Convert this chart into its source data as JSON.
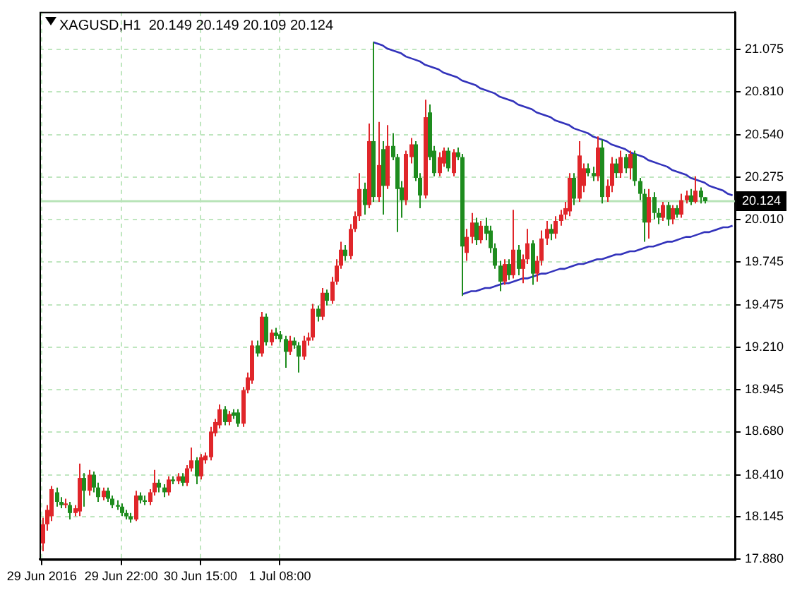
{
  "chart_data": {
    "type": "candlestick",
    "title": "XAGUSD,H1  20.149 20.149 20.109 20.124",
    "categories": [
      "29 Jun 2016",
      null,
      null,
      null,
      null,
      null,
      null,
      null,
      null,
      null,
      null,
      null,
      null,
      null,
      null,
      null,
      null,
      "29 Jun 22:00",
      null,
      null,
      null,
      null,
      null,
      null,
      null,
      null,
      null,
      null,
      null,
      null,
      null,
      null,
      null,
      null,
      "30 Jun 15:00",
      null,
      null,
      null,
      null,
      null,
      null,
      null,
      null,
      null,
      null,
      null,
      null,
      null,
      null,
      null,
      null,
      "1 Jul 08:00",
      null,
      null,
      null,
      null,
      null,
      null,
      null,
      null,
      null,
      null,
      null,
      null,
      null,
      null,
      null,
      null,
      null,
      null,
      null,
      null,
      null,
      null,
      null,
      null,
      null,
      null,
      null,
      null,
      null,
      null,
      null,
      null,
      null,
      null,
      null,
      null,
      null,
      null,
      null,
      null,
      null,
      null,
      null,
      null,
      null,
      null,
      null,
      null,
      null,
      null,
      null,
      null,
      null,
      null,
      null,
      null,
      null,
      null,
      null,
      null,
      null,
      null,
      null,
      null,
      null,
      null,
      null,
      null,
      null,
      null,
      null,
      null,
      null,
      null,
      null,
      null,
      null,
      null,
      null,
      null,
      null,
      null,
      null,
      null,
      null,
      null,
      null,
      null,
      null,
      null,
      null,
      null,
      null,
      null,
      null,
      null,
      null
    ],
    "ohlc": [
      [
        17.98,
        18.14,
        17.93,
        18.1
      ],
      [
        18.1,
        18.22,
        18.06,
        18.19
      ],
      [
        18.15,
        18.34,
        18.12,
        18.32
      ],
      [
        18.3,
        18.33,
        18.21,
        18.24
      ],
      [
        18.24,
        18.27,
        18.2,
        18.22
      ],
      [
        18.22,
        18.26,
        18.2,
        18.23
      ],
      [
        18.22,
        18.24,
        18.13,
        18.17
      ],
      [
        18.17,
        18.22,
        18.15,
        18.2
      ],
      [
        18.18,
        18.48,
        18.15,
        18.39
      ],
      [
        18.39,
        18.42,
        18.21,
        18.31
      ],
      [
        18.31,
        18.44,
        18.28,
        18.41
      ],
      [
        18.41,
        18.43,
        18.3,
        18.33
      ],
      [
        18.33,
        18.36,
        18.24,
        18.27
      ],
      [
        18.27,
        18.33,
        18.25,
        18.31
      ],
      [
        18.31,
        18.33,
        18.24,
        18.26
      ],
      [
        18.26,
        18.28,
        18.2,
        18.22
      ],
      [
        18.22,
        18.25,
        18.19,
        18.21
      ],
      [
        18.21,
        18.23,
        18.15,
        18.17
      ],
      [
        18.17,
        18.19,
        18.13,
        18.15
      ],
      [
        18.15,
        18.17,
        18.11,
        18.13
      ],
      [
        18.13,
        18.31,
        18.12,
        18.28
      ],
      [
        18.28,
        18.3,
        18.23,
        18.25
      ],
      [
        18.25,
        18.28,
        18.22,
        18.24
      ],
      [
        18.24,
        18.32,
        18.22,
        18.3
      ],
      [
        18.3,
        18.44,
        18.28,
        18.36
      ],
      [
        18.36,
        18.38,
        18.3,
        18.33
      ],
      [
        18.33,
        18.35,
        18.27,
        18.3
      ],
      [
        18.3,
        18.4,
        18.28,
        18.38
      ],
      [
        18.38,
        18.4,
        18.35,
        18.37
      ],
      [
        18.37,
        18.42,
        18.35,
        18.4
      ],
      [
        18.4,
        18.42,
        18.34,
        18.36
      ],
      [
        18.36,
        18.47,
        18.34,
        18.45
      ],
      [
        18.45,
        18.58,
        18.43,
        18.5
      ],
      [
        18.5,
        18.52,
        18.35,
        18.4
      ],
      [
        18.4,
        18.54,
        18.38,
        18.52
      ],
      [
        18.5,
        18.55,
        18.48,
        18.53
      ],
      [
        18.52,
        18.71,
        18.5,
        18.68
      ],
      [
        18.67,
        18.76,
        18.65,
        18.74
      ],
      [
        18.72,
        18.85,
        18.7,
        18.82
      ],
      [
        18.82,
        18.84,
        18.72,
        18.74
      ],
      [
        18.74,
        18.81,
        18.72,
        18.79
      ],
      [
        18.8,
        18.82,
        18.76,
        18.78
      ],
      [
        18.8,
        18.82,
        18.71,
        18.73
      ],
      [
        18.73,
        18.96,
        18.71,
        18.94
      ],
      [
        18.94,
        19.05,
        18.92,
        19.02
      ],
      [
        19.0,
        19.25,
        18.98,
        19.22
      ],
      [
        19.22,
        19.25,
        19.15,
        19.17
      ],
      [
        19.17,
        19.43,
        19.15,
        19.4
      ],
      [
        19.4,
        19.42,
        19.22,
        19.24
      ],
      [
        19.24,
        19.32,
        19.22,
        19.3
      ],
      [
        19.3,
        19.33,
        19.26,
        19.28
      ],
      [
        19.29,
        19.31,
        19.24,
        19.26
      ],
      [
        19.26,
        19.28,
        19.08,
        19.18
      ],
      [
        19.18,
        19.28,
        19.16,
        19.25
      ],
      [
        19.25,
        19.27,
        19.2,
        19.22
      ],
      [
        19.22,
        19.24,
        19.05,
        19.15
      ],
      [
        19.15,
        19.28,
        19.13,
        19.25
      ],
      [
        19.25,
        19.3,
        19.22,
        19.27
      ],
      [
        19.27,
        19.48,
        19.25,
        19.45
      ],
      [
        19.45,
        19.47,
        19.37,
        19.4
      ],
      [
        19.4,
        19.58,
        19.38,
        19.55
      ],
      [
        19.55,
        19.57,
        19.47,
        19.5
      ],
      [
        19.5,
        19.65,
        19.48,
        19.62
      ],
      [
        19.62,
        19.76,
        19.6,
        19.72
      ],
      [
        19.72,
        19.87,
        19.7,
        19.82
      ],
      [
        19.82,
        19.85,
        19.75,
        19.78
      ],
      [
        19.78,
        19.98,
        19.76,
        19.95
      ],
      [
        19.95,
        20.06,
        19.93,
        20.03
      ],
      [
        20.03,
        20.3,
        20.0,
        20.2
      ],
      [
        20.2,
        20.24,
        20.04,
        20.1
      ],
      [
        20.1,
        20.61,
        20.08,
        20.5
      ],
      [
        20.5,
        21.12,
        20.12,
        20.15
      ],
      [
        20.15,
        20.62,
        20.12,
        20.35
      ],
      [
        20.45,
        20.5,
        20.04,
        20.22
      ],
      [
        20.22,
        20.6,
        20.2,
        20.47
      ],
      [
        20.47,
        20.55,
        20.38,
        20.4
      ],
      [
        20.4,
        20.42,
        19.93,
        20.2
      ],
      [
        20.21,
        20.25,
        20.02,
        20.13
      ],
      [
        20.13,
        20.44,
        20.1,
        20.42
      ],
      [
        20.4,
        20.52,
        20.36,
        20.48
      ],
      [
        20.48,
        20.5,
        20.25,
        20.27
      ],
      [
        20.27,
        20.3,
        20.08,
        20.16
      ],
      [
        20.16,
        20.76,
        20.14,
        20.65
      ],
      [
        20.68,
        20.73,
        20.38,
        20.4
      ],
      [
        20.44,
        20.47,
        20.28,
        20.3
      ],
      [
        20.3,
        20.43,
        20.28,
        20.4
      ],
      [
        20.36,
        20.46,
        20.34,
        20.44
      ],
      [
        20.44,
        20.46,
        20.31,
        20.33
      ],
      [
        20.3,
        20.45,
        20.28,
        20.43
      ],
      [
        20.43,
        20.46,
        20.38,
        20.4
      ],
      [
        20.4,
        20.42,
        19.53,
        19.84
      ],
      [
        19.8,
        19.95,
        19.75,
        19.9
      ],
      [
        19.9,
        20.05,
        19.86,
        19.99
      ],
      [
        19.99,
        20.02,
        19.85,
        19.88
      ],
      [
        19.88,
        20.0,
        19.86,
        19.97
      ],
      [
        19.97,
        20.02,
        19.88,
        19.92
      ],
      [
        19.94,
        19.97,
        19.8,
        19.83
      ],
      [
        19.83,
        19.86,
        19.7,
        19.72
      ],
      [
        19.72,
        19.75,
        19.56,
        19.62
      ],
      [
        19.62,
        19.76,
        19.6,
        19.73
      ],
      [
        19.73,
        19.76,
        19.63,
        19.66
      ],
      [
        19.66,
        20.07,
        19.64,
        19.82
      ],
      [
        19.82,
        19.85,
        19.66,
        19.7
      ],
      [
        19.7,
        19.79,
        19.61,
        19.76
      ],
      [
        19.76,
        19.95,
        19.73,
        19.86
      ],
      [
        19.86,
        19.88,
        19.6,
        19.67
      ],
      [
        19.67,
        19.78,
        19.62,
        19.75
      ],
      [
        19.75,
        19.94,
        19.72,
        19.89
      ],
      [
        19.89,
        20.0,
        19.85,
        19.95
      ],
      [
        19.95,
        19.98,
        19.88,
        19.92
      ],
      [
        19.92,
        20.03,
        19.89,
        20.0
      ],
      [
        20.0,
        20.07,
        19.97,
        20.04
      ],
      [
        20.04,
        20.12,
        20.01,
        20.08
      ],
      [
        20.06,
        20.3,
        20.03,
        20.27
      ],
      [
        20.27,
        20.3,
        20.1,
        20.14
      ],
      [
        20.14,
        20.5,
        20.12,
        20.41
      ],
      [
        20.22,
        20.36,
        20.18,
        20.33
      ],
      [
        20.33,
        20.36,
        20.28,
        20.3
      ],
      [
        20.3,
        20.34,
        20.25,
        20.28
      ],
      [
        20.28,
        20.53,
        20.25,
        20.46
      ],
      [
        20.46,
        20.51,
        20.11,
        20.15
      ],
      [
        20.15,
        20.26,
        20.12,
        20.22
      ],
      [
        20.22,
        20.4,
        20.18,
        20.36
      ],
      [
        20.36,
        20.39,
        20.27,
        20.3
      ],
      [
        20.3,
        20.44,
        20.27,
        20.4
      ],
      [
        20.4,
        20.42,
        20.3,
        20.33
      ],
      [
        20.33,
        20.44,
        20.26,
        20.42
      ],
      [
        20.42,
        20.44,
        20.22,
        20.25
      ],
      [
        20.25,
        20.27,
        20.13,
        20.17
      ],
      [
        20.17,
        20.2,
        19.87,
        19.99
      ],
      [
        19.99,
        20.2,
        19.89,
        20.15
      ],
      [
        20.15,
        20.18,
        20.01,
        20.05
      ],
      [
        20.05,
        20.08,
        19.98,
        20.02
      ],
      [
        20.02,
        20.12,
        20.0,
        20.1
      ],
      [
        20.1,
        20.12,
        19.97,
        20.01
      ],
      [
        20.01,
        20.1,
        19.98,
        20.08
      ],
      [
        20.08,
        20.1,
        20.02,
        20.04
      ],
      [
        20.04,
        20.17,
        20.02,
        20.13
      ],
      [
        20.13,
        20.19,
        20.11,
        20.16
      ],
      [
        20.16,
        20.2,
        20.1,
        20.12
      ],
      [
        20.12,
        20.28,
        20.11,
        20.19
      ],
      [
        20.19,
        20.21,
        20.11,
        20.149
      ],
      [
        20.149,
        20.149,
        20.109,
        20.124
      ],
      null,
      null,
      null,
      null,
      null,
      null
    ],
    "colors": [
      "#e0262a",
      "#e0262a",
      "#e0262a",
      "#1e8c1e",
      "#1e8c1e",
      "#e0262a",
      "#1e8c1e",
      "#e0262a",
      "#e0262a",
      "#1e8c1e",
      "#e0262a",
      "#1e8c1e",
      "#1e8c1e",
      "#e0262a",
      "#1e8c1e",
      "#1e8c1e",
      "#1e8c1e",
      "#1e8c1e",
      "#1e8c1e",
      "#1e8c1e",
      "#e0262a",
      "#1e8c1e",
      "#1e8c1e",
      "#e0262a",
      "#e0262a",
      "#1e8c1e",
      "#1e8c1e",
      "#e0262a",
      "#1e8c1e",
      "#e0262a",
      "#1e8c1e",
      "#e0262a",
      "#e0262a",
      "#1e8c1e",
      "#e0262a",
      "#e0262a",
      "#e0262a",
      "#e0262a",
      "#e0262a",
      "#1e8c1e",
      "#e0262a",
      "#1e8c1e",
      "#1e8c1e",
      "#e0262a",
      "#e0262a",
      "#e0262a",
      "#1e8c1e",
      "#e0262a",
      "#1e8c1e",
      "#e0262a",
      "#1e8c1e",
      "#1e8c1e",
      "#1e8c1e",
      "#e0262a",
      "#1e8c1e",
      "#1e8c1e",
      "#e0262a",
      "#e0262a",
      "#e0262a",
      "#1e8c1e",
      "#e0262a",
      "#1e8c1e",
      "#e0262a",
      "#e0262a",
      "#e0262a",
      "#1e8c1e",
      "#e0262a",
      "#e0262a",
      "#e0262a",
      "#1e8c1e",
      "#e0262a",
      "#1e8c1e",
      "#e0262a",
      "#1e8c1e",
      "#e0262a",
      "#1e8c1e",
      "#1e8c1e",
      "#1e8c1e",
      "#e0262a",
      "#e0262a",
      "#1e8c1e",
      "#1e8c1e",
      "#e0262a",
      "#1e8c1e",
      "#1e8c1e",
      "#e0262a",
      "#e0262a",
      "#1e8c1e",
      "#e0262a",
      "#1e8c1e",
      "#1e8c1e",
      "#e0262a",
      "#e0262a",
      "#1e8c1e",
      "#e0262a",
      "#1e8c1e",
      "#1e8c1e",
      "#1e8c1e",
      "#1e8c1e",
      "#e0262a",
      "#1e8c1e",
      "#e0262a",
      "#1e8c1e",
      "#e0262a",
      "#e0262a",
      "#1e8c1e",
      "#e0262a",
      "#e0262a",
      "#e0262a",
      "#1e8c1e",
      "#e0262a",
      "#e0262a",
      "#e0262a",
      "#e0262a",
      "#1e8c1e",
      "#e0262a",
      "#e0262a",
      "#1e8c1e",
      "#1e8c1e",
      "#e0262a",
      "#1e8c1e",
      "#e0262a",
      "#e0262a",
      "#1e8c1e",
      "#e0262a",
      "#1e8c1e",
      "#e0262a",
      "#1e8c1e",
      "#1e8c1e",
      "#1e8c1e",
      "#e0262a",
      "#1e8c1e",
      "#1e8c1e",
      "#e0262a",
      "#1e8c1e",
      "#e0262a",
      "#1e8c1e",
      "#e0262a",
      "#e0262a",
      "#1e8c1e",
      "#e0262a",
      "#1e8c1e",
      "#1e8c1e",
      null,
      null,
      null,
      null,
      null,
      null
    ],
    "series": [
      {
        "type": "line",
        "values": [
          null,
          null,
          null,
          null,
          null,
          null,
          null,
          null,
          null,
          null,
          null,
          null,
          null,
          null,
          null,
          null,
          null,
          null,
          null,
          null,
          null,
          null,
          null,
          null,
          null,
          null,
          null,
          null,
          null,
          null,
          null,
          null,
          null,
          null,
          null,
          null,
          null,
          null,
          null,
          null,
          null,
          null,
          null,
          null,
          null,
          null,
          null,
          null,
          null,
          null,
          null,
          null,
          null,
          null,
          null,
          null,
          null,
          null,
          null,
          null,
          null,
          null,
          null,
          null,
          null,
          null,
          null,
          null,
          null,
          null,
          null,
          21.12,
          21.11,
          21.1,
          21.08,
          21.07,
          21.06,
          21.05,
          21.03,
          21.02,
          21.01,
          21.0,
          20.98,
          20.97,
          20.96,
          20.95,
          20.93,
          20.92,
          20.91,
          20.9,
          20.88,
          20.87,
          20.86,
          20.85,
          20.83,
          20.82,
          20.81,
          20.8,
          20.78,
          20.77,
          20.76,
          20.75,
          20.73,
          20.72,
          20.71,
          20.7,
          20.68,
          20.67,
          20.66,
          20.65,
          20.63,
          20.62,
          20.61,
          20.6,
          20.58,
          20.57,
          20.56,
          20.55,
          20.53,
          20.52,
          20.51,
          20.5,
          20.48,
          20.47,
          20.46,
          20.45,
          20.43,
          20.42,
          20.41,
          20.4,
          20.38,
          20.37,
          20.36,
          20.35,
          20.34,
          20.32,
          20.31,
          20.3,
          20.29,
          20.27,
          20.26,
          20.25,
          20.24,
          20.22,
          20.21,
          20.2,
          20.19,
          20.17,
          20.16
        ],
        "color": "#3333bb"
      },
      {
        "type": "line",
        "values": [
          null,
          null,
          null,
          null,
          null,
          null,
          null,
          null,
          null,
          null,
          null,
          null,
          null,
          null,
          null,
          null,
          null,
          null,
          null,
          null,
          null,
          null,
          null,
          null,
          null,
          null,
          null,
          null,
          null,
          null,
          null,
          null,
          null,
          null,
          null,
          null,
          null,
          null,
          null,
          null,
          null,
          null,
          null,
          null,
          null,
          null,
          null,
          null,
          null,
          null,
          null,
          null,
          null,
          null,
          null,
          null,
          null,
          null,
          null,
          null,
          null,
          null,
          null,
          null,
          null,
          null,
          null,
          null,
          null,
          null,
          null,
          null,
          null,
          null,
          null,
          null,
          null,
          null,
          null,
          null,
          null,
          null,
          null,
          null,
          null,
          null,
          null,
          null,
          null,
          null,
          19.54,
          19.55,
          19.56,
          19.56,
          19.57,
          19.58,
          19.58,
          19.59,
          19.6,
          19.61,
          19.61,
          19.62,
          19.63,
          19.64,
          19.64,
          19.65,
          19.66,
          19.67,
          19.67,
          19.68,
          19.69,
          19.7,
          19.7,
          19.71,
          19.72,
          19.73,
          19.73,
          19.74,
          19.75,
          19.76,
          19.76,
          19.77,
          19.78,
          19.79,
          19.79,
          19.8,
          19.81,
          19.81,
          19.82,
          19.83,
          19.84,
          19.84,
          19.85,
          19.86,
          19.87,
          19.87,
          19.88,
          19.89,
          19.9,
          19.9,
          19.91,
          19.92,
          19.93,
          19.93,
          19.94,
          19.95,
          19.96,
          19.96,
          19.97
        ],
        "color": "#3333bb"
      }
    ],
    "ref_lines": [
      {
        "axis": "y",
        "value": 20.124,
        "label": "20.124",
        "color": "#b8e4b8"
      }
    ],
    "ylim": [
      17.88,
      21.31
    ],
    "yticks": [
      {
        "value": 21.075,
        "label": "21.075"
      },
      {
        "value": 20.81,
        "label": "20.810"
      },
      {
        "value": 20.54,
        "label": "20.540"
      },
      {
        "value": 20.275,
        "label": "20.275"
      },
      {
        "value": 20.01,
        "label": "20.010"
      },
      {
        "value": 19.745,
        "label": "19.745"
      },
      {
        "value": 19.475,
        "label": "19.475"
      },
      {
        "value": 19.21,
        "label": "19.210"
      },
      {
        "value": 18.945,
        "label": "18.945"
      },
      {
        "value": 18.68,
        "label": "18.680"
      },
      {
        "value": 18.41,
        "label": "18.410"
      },
      {
        "value": 18.145,
        "label": "18.145"
      },
      {
        "value": 17.88,
        "label": "17.880"
      }
    ],
    "grid": true
  }
}
